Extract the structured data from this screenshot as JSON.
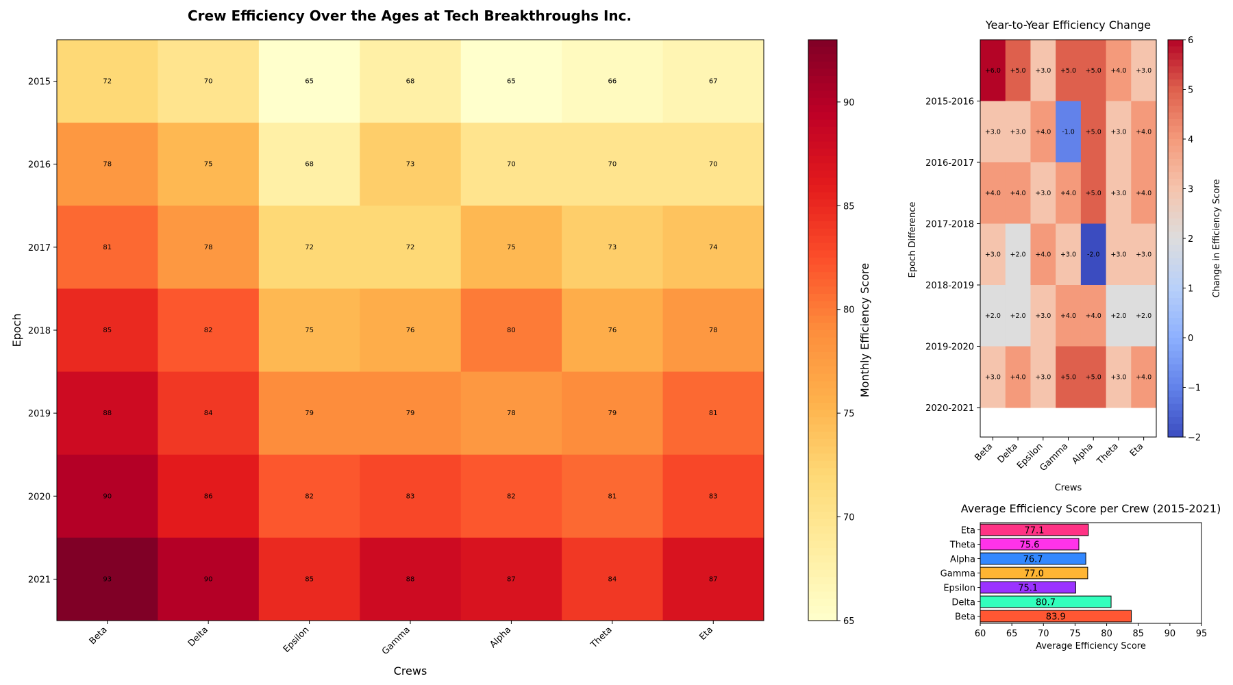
{
  "figure": {
    "main_title": "Crew Efficiency Over the Ages at Tech Breakthroughs Inc."
  },
  "chart_data": [
    {
      "type": "heatmap",
      "title": "",
      "xlabel": "Crews",
      "ylabel": "Epoch",
      "x_categories": [
        "Beta",
        "Delta",
        "Epsilon",
        "Gamma",
        "Alpha",
        "Theta",
        "Eta"
      ],
      "y_categories": [
        "2015",
        "2016",
        "2017",
        "2018",
        "2019",
        "2020",
        "2021"
      ],
      "values": [
        [
          72,
          70,
          65,
          68,
          65,
          66,
          67
        ],
        [
          78,
          75,
          68,
          73,
          70,
          70,
          70
        ],
        [
          81,
          78,
          72,
          72,
          75,
          73,
          74
        ],
        [
          85,
          82,
          75,
          76,
          80,
          76,
          78
        ],
        [
          88,
          84,
          79,
          79,
          78,
          79,
          81
        ],
        [
          90,
          86,
          82,
          83,
          82,
          81,
          83
        ],
        [
          93,
          90,
          85,
          88,
          87,
          84,
          87
        ]
      ],
      "colormap": "YlOrRd",
      "colorbar": {
        "label": "Monthly Efficiency Score",
        "range": [
          65,
          93
        ],
        "ticks": [
          65,
          70,
          75,
          80,
          85,
          90
        ]
      }
    },
    {
      "type": "heatmap",
      "title": "Year-to-Year Efficiency Change",
      "xlabel": "Crews",
      "ylabel": "Epoch Difference",
      "x_categories": [
        "Beta",
        "Delta",
        "Epsilon",
        "Gamma",
        "Alpha",
        "Theta",
        "Eta"
      ],
      "y_tick_labels": [
        "2015-2016",
        "2016-2017",
        "2017-2018",
        "2018-2019",
        "2019-2020",
        "2020-2021"
      ],
      "values": [
        [
          6.0,
          5.0,
          3.0,
          5.0,
          5.0,
          4.0,
          3.0
        ],
        [
          3.0,
          3.0,
          4.0,
          -1.0,
          5.0,
          3.0,
          4.0
        ],
        [
          4.0,
          4.0,
          3.0,
          4.0,
          5.0,
          3.0,
          4.0
        ],
        [
          3.0,
          2.0,
          4.0,
          3.0,
          -2.0,
          3.0,
          3.0
        ],
        [
          2.0,
          2.0,
          3.0,
          4.0,
          4.0,
          2.0,
          2.0
        ],
        [
          3.0,
          4.0,
          3.0,
          5.0,
          5.0,
          3.0,
          4.0
        ]
      ],
      "colormap": "coolwarm",
      "colorbar": {
        "label": "Change in Efficiency Score",
        "range": [
          -2,
          6
        ],
        "ticks": [
          -2,
          -1,
          0,
          1,
          2,
          3,
          4,
          5,
          6
        ]
      }
    },
    {
      "type": "bar",
      "orientation": "horizontal",
      "title": "Average Efficiency Score per Crew (2015-2021)",
      "xlabel": "Average Efficiency Score",
      "ylabel": "",
      "categories": [
        "Beta",
        "Delta",
        "Epsilon",
        "Gamma",
        "Alpha",
        "Theta",
        "Eta"
      ],
      "values": [
        83.9,
        80.7,
        75.1,
        77.0,
        76.7,
        75.6,
        77.1
      ],
      "value_labels": [
        "83.9",
        "80.7",
        "75.1",
        "77.0",
        "76.7",
        "75.6",
        "77.1"
      ],
      "colors": [
        "#ff5733",
        "#33ffbd",
        "#9b33ff",
        "#ffb533",
        "#3388ff",
        "#ff33e9",
        "#ff3385"
      ],
      "xlim": [
        60,
        95
      ],
      "xticks": [
        60,
        65,
        70,
        75,
        80,
        85,
        90,
        95
      ]
    }
  ]
}
